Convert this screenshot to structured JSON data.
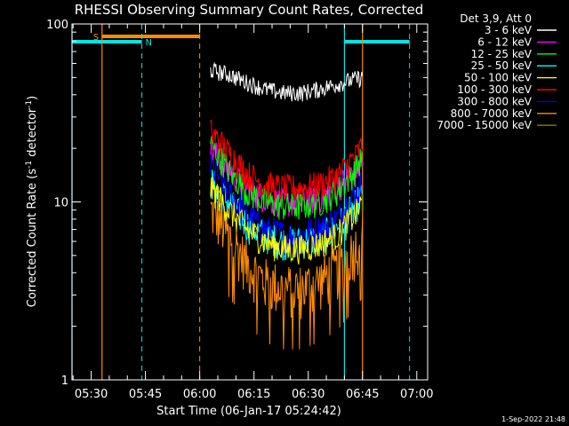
{
  "colors": {
    "background": "#000000",
    "axes": "#ffffff",
    "attenuator": "#ff8c00",
    "night": "#00e5e5",
    "series": [
      "#ffffff",
      "#ff00ff",
      "#00ff00",
      "#00ffff",
      "#ffff00",
      "#ff0000",
      "#0000ff",
      "#ff8c00",
      "#808000"
    ]
  },
  "chart_data": {
    "type": "line",
    "title": "RHESSI Observing Summary Count Rates, Corrected",
    "xlabel": "Start Time (06-Jan-17 05:24:42)",
    "ylabel": "Corrected Count Rate (s⁻¹ detector⁻¹)",
    "ylabel_unit": "-1",
    "ylabel_parts": [
      "Corrected Count Rate (s",
      " detector",
      ")"
    ],
    "y_scale": "log",
    "ylim": [
      1,
      100
    ],
    "xlim": [
      "05:24:42",
      "07:03:00"
    ],
    "y_ticks": [
      "1",
      "10",
      "100"
    ],
    "x_ticks": [
      "05:30",
      "05:45",
      "06:00",
      "06:15",
      "06:30",
      "06:45",
      "07:00"
    ],
    "legend_title": "Det 3,9, Att 0",
    "legend_position": "right",
    "footer_timestamp": "1-Sep-2022 21:48",
    "data_interval": [
      "06:03",
      "06:45"
    ],
    "series": [
      {
        "name": "3 - 6 keV",
        "x": [
          "06:03",
          "06:08",
          "06:13",
          "06:18",
          "06:23",
          "06:28",
          "06:33",
          "06:38",
          "06:43",
          "06:45"
        ],
        "values": [
          55,
          52,
          47,
          43,
          41,
          41,
          43,
          46,
          49,
          50
        ]
      },
      {
        "name": "6 - 12 keV",
        "x": [
          "06:03",
          "06:08",
          "06:13",
          "06:18",
          "06:23",
          "06:28",
          "06:33",
          "06:38",
          "06:43",
          "06:45"
        ],
        "values": [
          20,
          15,
          12,
          10.5,
          10,
          10,
          10.5,
          12,
          15,
          17
        ]
      },
      {
        "name": "12 - 25 keV",
        "x": [
          "06:03",
          "06:08",
          "06:13",
          "06:18",
          "06:23",
          "06:28",
          "06:33",
          "06:38",
          "06:43",
          "06:45"
        ],
        "values": [
          21,
          15,
          11.5,
          10,
          9.5,
          9.5,
          10,
          11.5,
          15,
          18
        ]
      },
      {
        "name": "25 - 50 keV",
        "x": [
          "06:03",
          "06:08",
          "06:13",
          "06:18",
          "06:23",
          "06:28",
          "06:33",
          "06:38",
          "06:43",
          "06:45"
        ],
        "values": [
          13,
          10,
          7.5,
          6.5,
          6,
          6,
          6.3,
          7.2,
          9.5,
          11
        ]
      },
      {
        "name": "50 - 100 keV",
        "x": [
          "06:03",
          "06:08",
          "06:13",
          "06:18",
          "06:23",
          "06:28",
          "06:33",
          "06:38",
          "06:43",
          "06:45"
        ],
        "values": [
          12,
          9,
          7,
          6,
          5.5,
          5.5,
          5.8,
          6.5,
          8.5,
          10
        ]
      },
      {
        "name": "100 - 300 keV",
        "x": [
          "06:03",
          "06:08",
          "06:13",
          "06:18",
          "06:23",
          "06:28",
          "06:33",
          "06:38",
          "06:43",
          "06:45"
        ],
        "values": [
          25,
          19,
          14.5,
          12.5,
          12,
          12,
          12.5,
          14,
          18,
          21
        ]
      },
      {
        "name": "300 - 800 keV",
        "x": [
          "06:03",
          "06:08",
          "06:13",
          "06:18",
          "06:23",
          "06:28",
          "06:33",
          "06:38",
          "06:43",
          "06:45"
        ],
        "values": [
          16,
          11.5,
          8.5,
          7,
          6.5,
          6.5,
          7,
          8,
          11,
          13
        ]
      },
      {
        "name": "800 - 7000 keV",
        "x": [
          "06:03",
          "06:08",
          "06:13",
          "06:18",
          "06:23",
          "06:28",
          "06:33",
          "06:38",
          "06:43",
          "06:45"
        ],
        "values": [
          9,
          6.5,
          4.5,
          3.6,
          3.3,
          3.3,
          3.6,
          4.2,
          5.5,
          6.5
        ]
      },
      {
        "name": "7000 - 15000 keV",
        "x": [
          "06:03",
          "06:08",
          "06:13",
          "06:18",
          "06:23",
          "06:28",
          "06:33",
          "06:38",
          "06:43",
          "06:45"
        ],
        "values": [
          null,
          null,
          null,
          null,
          null,
          null,
          null,
          null,
          null,
          10
        ]
      }
    ],
    "annotations": {
      "attenuator_label": "S",
      "night_label": "N",
      "attenuator_interval": [
        "05:33",
        "06:00"
      ],
      "night_intervals": [
        [
          "05:24:42",
          "05:44"
        ],
        [
          "06:40",
          "06:58"
        ]
      ],
      "solid_markers": [
        {
          "time": "05:24:42",
          "color": "night"
        },
        {
          "time": "05:33",
          "color": "attenuator"
        },
        {
          "time": "06:40",
          "color": "night"
        },
        {
          "time": "06:45",
          "color": "attenuator"
        }
      ],
      "dashed_markers": [
        {
          "time": "05:44",
          "color": "night"
        },
        {
          "time": "06:00",
          "color": "attenuator"
        },
        {
          "time": "06:58",
          "color": "night"
        }
      ]
    }
  }
}
